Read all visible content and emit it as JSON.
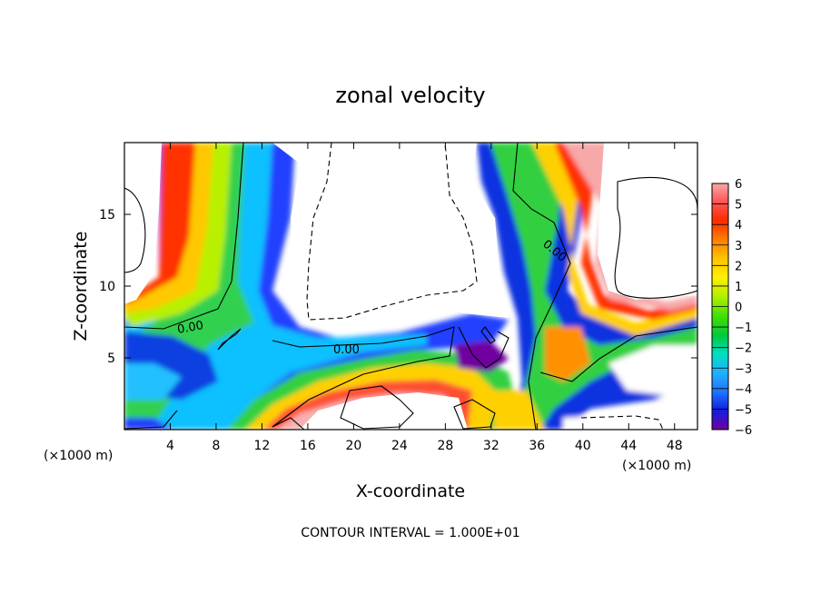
{
  "chart_data": {
    "type": "heatmap",
    "title": "zonal velocity",
    "xlabel": "X-coordinate",
    "ylabel": "Z-coordinate",
    "x_unit_left": "(×1000 m)",
    "x_unit_right": "(×1000 m)",
    "footer": "CONTOUR INTERVAL = 1.000E+01",
    "xlim": [
      0,
      50
    ],
    "ylim": [
      0,
      20
    ],
    "xticks": [
      4,
      8,
      12,
      16,
      20,
      24,
      28,
      32,
      36,
      40,
      44,
      48
    ],
    "yticks": [
      5,
      10,
      15
    ],
    "colorbar": {
      "ticks": [
        6,
        5,
        4,
        3,
        2,
        1,
        0,
        -1,
        -2,
        -3,
        -4,
        -5,
        -6
      ],
      "range": [
        -6,
        6
      ],
      "colors": [
        "#f7a8a8",
        "#ff5a5a",
        "#ff2a00",
        "#ff8000",
        "#ffc800",
        "#fff000",
        "#b0f000",
        "#40e000",
        "#00c840",
        "#00e0c0",
        "#20b0ff",
        "#2070ff",
        "#1020e0",
        "#3000c0",
        "#7000a0"
      ]
    },
    "contour_labels": [
      "0.00",
      "0.00",
      "0.00"
    ],
    "contour_label_values": [
      0,
      0,
      0
    ]
  }
}
